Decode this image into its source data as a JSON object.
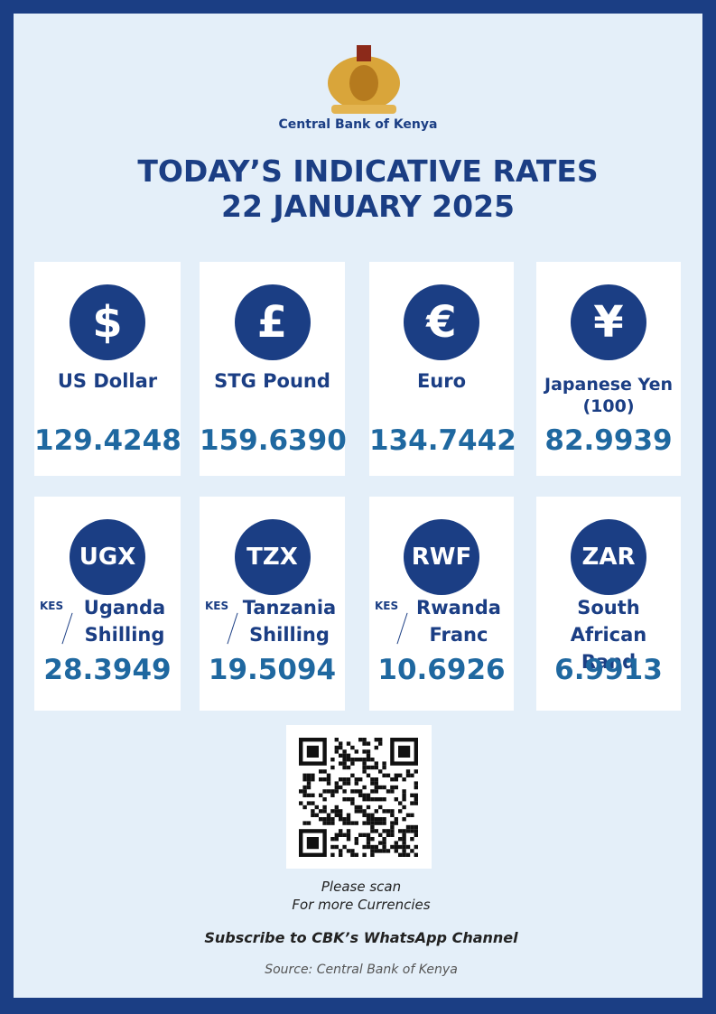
{
  "header": {
    "organization": "Central Bank of Kenya",
    "title_lines": [
      "TODAY’S INDICATIVE RATES",
      "22 JANUARY 2025"
    ]
  },
  "cards": [
    {
      "icon": "$",
      "name": [
        "US Dollar"
      ],
      "value": "129.4248"
    },
    {
      "icon": "£",
      "name": [
        "STG Pound"
      ],
      "value": "159.6390"
    },
    {
      "icon": "€",
      "name": [
        "Euro"
      ],
      "value": "134.7442"
    },
    {
      "icon": "¥",
      "name": [
        "Japanese Yen",
        "(100)"
      ],
      "value": "82.9939"
    },
    {
      "icon": "UGX",
      "prefix": "KES",
      "name": [
        "Uganda",
        "Shilling"
      ],
      "value": "28.3949"
    },
    {
      "icon": "TZX",
      "prefix": "KES",
      "name": [
        "Tanzania",
        "Shilling"
      ],
      "value": "19.5094"
    },
    {
      "icon": "RWF",
      "prefix": "KES",
      "name": [
        "Rwanda",
        "Franc"
      ],
      "value": "10.6926"
    },
    {
      "icon": "ZAR",
      "name": [
        "South African",
        "Rand"
      ],
      "value": "6.9913"
    }
  ],
  "footer": {
    "scan_lines": [
      "Please scan",
      "For more Currencies"
    ],
    "subscribe": "Subscribe to CBK’s WhatsApp Channel",
    "source": "Source: Central Bank of Kenya"
  }
}
